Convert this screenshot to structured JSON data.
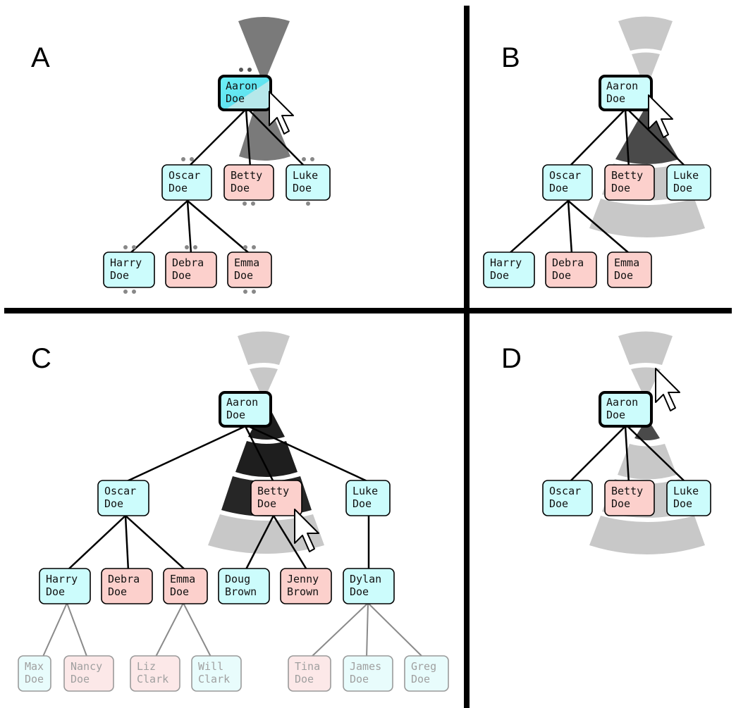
{
  "panels": [
    {
      "id": "A",
      "label": "A",
      "nodes": [
        {
          "id": "aaron",
          "first": "Aaron",
          "last": "Doe",
          "sex": "m",
          "selected": true,
          "highlight": true
        },
        {
          "id": "oscar",
          "first": "Oscar",
          "last": "Doe",
          "sex": "m"
        },
        {
          "id": "betty",
          "first": "Betty",
          "last": "Doe",
          "sex": "f"
        },
        {
          "id": "luke",
          "first": "Luke",
          "last": "Doe",
          "sex": "m"
        },
        {
          "id": "harry",
          "first": "Harry",
          "last": "Doe",
          "sex": "m"
        },
        {
          "id": "debra",
          "first": "Debra",
          "last": "Doe",
          "sex": "f"
        },
        {
          "id": "emma",
          "first": "Emma",
          "last": "Doe",
          "sex": "f"
        }
      ]
    },
    {
      "id": "B",
      "label": "B",
      "nodes": [
        {
          "id": "aaron",
          "first": "Aaron",
          "last": "Doe",
          "sex": "m",
          "selected": true
        },
        {
          "id": "oscar",
          "first": "Oscar",
          "last": "Doe",
          "sex": "m"
        },
        {
          "id": "betty",
          "first": "Betty",
          "last": "Doe",
          "sex": "f"
        },
        {
          "id": "luke",
          "first": "Luke",
          "last": "Doe",
          "sex": "m"
        },
        {
          "id": "harry",
          "first": "Harry",
          "last": "Doe",
          "sex": "m"
        },
        {
          "id": "debra",
          "first": "Debra",
          "last": "Doe",
          "sex": "f"
        },
        {
          "id": "emma",
          "first": "Emma",
          "last": "Doe",
          "sex": "f"
        }
      ]
    },
    {
      "id": "C",
      "label": "C",
      "nodes": [
        {
          "id": "aaron",
          "first": "Aaron",
          "last": "Doe",
          "sex": "m",
          "selected": true
        },
        {
          "id": "oscar",
          "first": "Oscar",
          "last": "Doe",
          "sex": "m"
        },
        {
          "id": "betty",
          "first": "Betty",
          "last": "Doe",
          "sex": "f"
        },
        {
          "id": "luke",
          "first": "Luke",
          "last": "Doe",
          "sex": "m"
        },
        {
          "id": "harry",
          "first": "Harry",
          "last": "Doe",
          "sex": "m"
        },
        {
          "id": "debra",
          "first": "Debra",
          "last": "Doe",
          "sex": "f"
        },
        {
          "id": "emma",
          "first": "Emma",
          "last": "Doe",
          "sex": "f"
        },
        {
          "id": "doug",
          "first": "Doug",
          "last": "Brown",
          "sex": "m"
        },
        {
          "id": "jenny",
          "first": "Jenny",
          "last": "Brown",
          "sex": "f"
        },
        {
          "id": "dylan",
          "first": "Dylan",
          "last": "Doe",
          "sex": "m"
        },
        {
          "id": "max",
          "first": "Max",
          "last": "Doe",
          "sex": "m",
          "faded": true
        },
        {
          "id": "nancy",
          "first": "Nancy",
          "last": "Doe",
          "sex": "f",
          "faded": true
        },
        {
          "id": "liz",
          "first": "Liz",
          "last": "Clark",
          "sex": "f",
          "faded": true
        },
        {
          "id": "will",
          "first": "Will",
          "last": "Clark",
          "sex": "m",
          "faded": true
        },
        {
          "id": "tina",
          "first": "Tina",
          "last": "Doe",
          "sex": "f",
          "faded": true
        },
        {
          "id": "james",
          "first": "James",
          "last": "Doe",
          "sex": "m",
          "faded": true
        },
        {
          "id": "greg",
          "first": "Greg",
          "last": "Doe",
          "sex": "m",
          "faded": true
        }
      ]
    },
    {
      "id": "D",
      "label": "D",
      "nodes": [
        {
          "id": "aaron",
          "first": "Aaron",
          "last": "Doe",
          "sex": "m",
          "selected": true
        },
        {
          "id": "oscar",
          "first": "Oscar",
          "last": "Doe",
          "sex": "m"
        },
        {
          "id": "betty",
          "first": "Betty",
          "last": "Doe",
          "sex": "f"
        },
        {
          "id": "luke",
          "first": "Luke",
          "last": "Doe",
          "sex": "m"
        }
      ]
    }
  ],
  "colors": {
    "male": "#ccfcfc",
    "female": "#fcd0cc",
    "male_faded": "#e8fcfc",
    "female_faded": "#fce8e8",
    "highlight": "#6ef0f8",
    "divider": "#000000",
    "wedge_light": "#c8c8c8",
    "wedge_mid": "#787878",
    "wedge_dark": "#1e1e1e"
  }
}
